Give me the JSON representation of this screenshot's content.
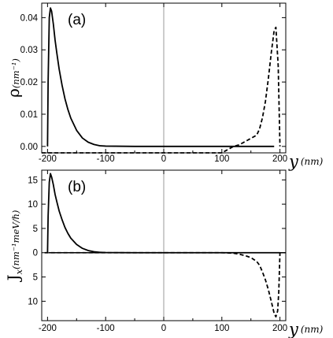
{
  "chart_data": [
    {
      "type": "line",
      "panel_label": "(a)",
      "ylabel_symbol": "ρ",
      "ylabel_unit": "(nm⁻¹)",
      "xlabel_symbol": "y",
      "xlabel_unit": "(nm)",
      "xlim": [
        -210,
        210
      ],
      "ylim": [
        -0.002,
        0.0445
      ],
      "xticks": [
        -200,
        -100,
        0,
        100,
        200
      ],
      "xtick_labels": [
        "-200",
        "-100",
        "0",
        "100",
        "200"
      ],
      "yticks": [
        0.0,
        0.01,
        0.02,
        0.03,
        0.04
      ],
      "ytick_labels": [
        "0.00",
        "0.01",
        "0.02",
        "0.03",
        "0.04"
      ],
      "series": [
        {
          "style": "solid",
          "x": [
            -200,
            -199,
            -197,
            -195,
            -193,
            -190,
            -187,
            -184,
            -180,
            -175,
            -170,
            -165,
            -160,
            -150,
            -140,
            -130,
            -120,
            -110,
            -100,
            -50,
            0,
            50,
            100,
            150,
            190
          ],
          "y": [
            0.0,
            0.02,
            0.04,
            0.043,
            0.042,
            0.038,
            0.033,
            0.029,
            0.024,
            0.019,
            0.0148,
            0.0115,
            0.0088,
            0.005,
            0.0026,
            0.0013,
            0.0006,
            0.0002,
            0.0001,
            0.0,
            0.0,
            0.0,
            0.0,
            0.0,
            0.0
          ]
        },
        {
          "style": "dashed",
          "x": [
            -210,
            -150,
            -100,
            0,
            100,
            120,
            130,
            140,
            150,
            160,
            165,
            170,
            175,
            180,
            185,
            190,
            193,
            197,
            200
          ],
          "y": [
            -0.002,
            -0.002,
            -0.002,
            -0.002,
            -0.002,
            0.0,
            0.0005,
            0.0015,
            0.0025,
            0.0035,
            0.0055,
            0.009,
            0.014,
            0.021,
            0.029,
            0.036,
            0.037,
            0.025,
            0.0
          ]
        }
      ]
    },
    {
      "type": "line",
      "panel_label": "(b)",
      "ylabel_symbol": "J",
      "ylabel_subscript": "x",
      "ylabel_unit": "(nm⁻¹meV/ℏ)",
      "xlabel_symbol": "y",
      "xlabel_unit": "(nm)",
      "xlim": [
        -210,
        210
      ],
      "ylim": [
        -14,
        17
      ],
      "xticks": [
        -200,
        -100,
        0,
        100,
        200
      ],
      "xtick_labels": [
        "-200",
        "-100",
        "0",
        "100",
        "200"
      ],
      "yticks": [
        15,
        10,
        5,
        0,
        -5,
        -10
      ],
      "ytick_labels": [
        "15",
        "10",
        "5",
        "0",
        "5",
        "10"
      ],
      "series": [
        {
          "style": "solid",
          "x": [
            -200,
            -199,
            -197,
            -195,
            -193,
            -190,
            -187,
            -184,
            -180,
            -175,
            -170,
            -165,
            -160,
            -150,
            -140,
            -130,
            -120,
            -110,
            -100,
            -50,
            0,
            50,
            100,
            150,
            200
          ],
          "y": [
            0.0,
            7.5,
            14.5,
            16.3,
            15.6,
            14.0,
            12.0,
            10.5,
            8.6,
            6.8,
            5.2,
            4.0,
            3.0,
            1.7,
            0.9,
            0.45,
            0.2,
            0.08,
            0.03,
            0.0,
            0.0,
            0.0,
            0.0,
            0.0,
            0.0
          ]
        },
        {
          "style": "dashed",
          "x": [
            -205,
            -150,
            -100,
            0,
            100,
            120,
            130,
            140,
            150,
            160,
            165,
            170,
            175,
            180,
            185,
            190,
            193,
            196,
            198,
            200
          ],
          "y": [
            0.0,
            0.0,
            0.0,
            0.0,
            0.0,
            -0.1,
            -0.3,
            -0.6,
            -1.0,
            -1.8,
            -2.6,
            -4.0,
            -5.6,
            -7.6,
            -10.0,
            -12.5,
            -13.2,
            -12.0,
            -8.0,
            0.0
          ]
        }
      ]
    }
  ]
}
